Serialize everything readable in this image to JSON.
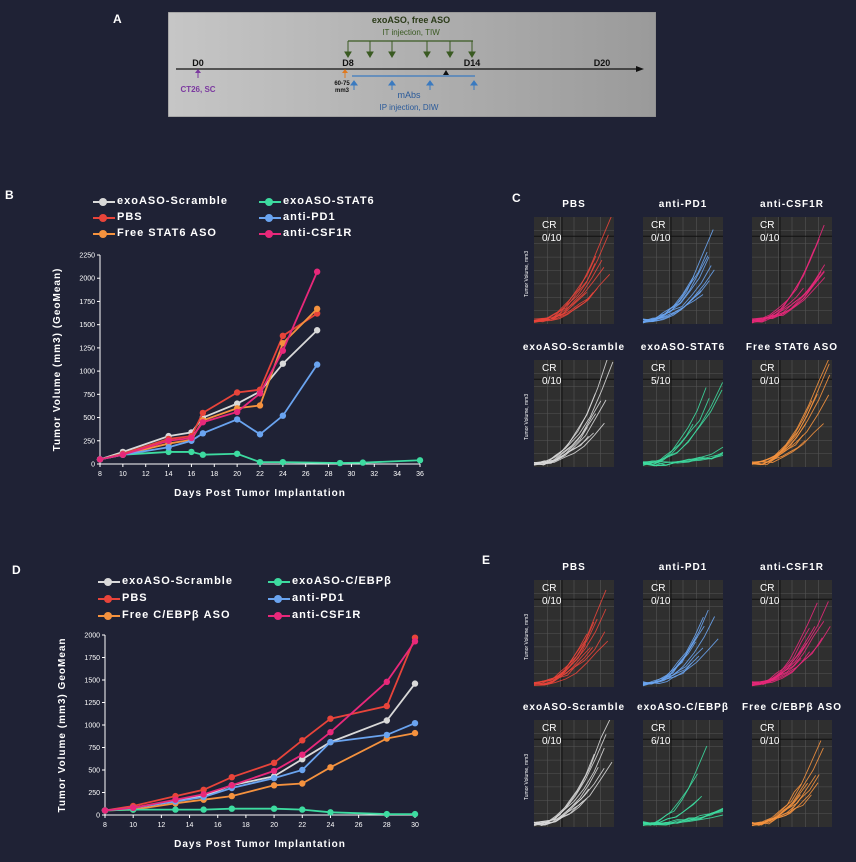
{
  "colors": {
    "scramble": "#d9d9d9",
    "pbs": "#e8443a",
    "free": "#f5923e",
    "exo": "#3ddba0",
    "pd1": "#6aa4f0",
    "csf1r": "#e8287a",
    "purple": "#7c3aa0",
    "green": "#3a5a22",
    "blue": "#3a7ac0"
  },
  "panelA": {
    "label": "A",
    "top_title": "exoASO, free ASO",
    "top_sub": "IT injection, TIW",
    "days": [
      "D0",
      "D8",
      "D14",
      "D20"
    ],
    "cell_label": "CT26, SC",
    "vol_label1": "60-75",
    "vol_label2": "mm3",
    "bottom_title": "mAbs",
    "bottom_sub": "IP injection, DIW"
  },
  "panelB": {
    "label": "B"
  },
  "panelC": {
    "label": "C"
  },
  "panelD": {
    "label": "D"
  },
  "panelE": {
    "label": "E"
  },
  "chart_data": [
    {
      "type": "line",
      "panel": "B",
      "xlabel": "Days Post Tumor Implantation",
      "ylabel": "Tumor Volume (mm3) (GeoMean)",
      "xticks": [
        8,
        10,
        12,
        14,
        16,
        18,
        20,
        22,
        24,
        26,
        28,
        30,
        32,
        34,
        36
      ],
      "yticks": [
        0,
        250,
        500,
        750,
        1000,
        1250,
        1500,
        1750,
        2000,
        2250
      ],
      "xlim": [
        8,
        36
      ],
      "ylim": [
        0,
        2250
      ],
      "legend": [
        "exoASO-Scramble",
        "PBS",
        "Free STAT6 ASO",
        "exoASO-STAT6",
        "anti-PD1",
        "anti-CSF1R"
      ],
      "series": [
        {
          "name": "exoASO-Scramble",
          "color": "#d9d9d9",
          "x": [
            8,
            10,
            14,
            16,
            17,
            20,
            22,
            24,
            27
          ],
          "y": [
            50,
            130,
            300,
            340,
            500,
            650,
            780,
            1080,
            1440
          ]
        },
        {
          "name": "PBS",
          "color": "#e8443a",
          "x": [
            8,
            10,
            14,
            16,
            17,
            20,
            22,
            24,
            27
          ],
          "y": [
            50,
            110,
            270,
            300,
            550,
            770,
            800,
            1380,
            1620
          ]
        },
        {
          "name": "Free STAT6 ASO",
          "color": "#f5923e",
          "x": [
            8,
            10,
            14,
            16,
            17,
            20,
            22,
            24,
            27
          ],
          "y": [
            50,
            100,
            220,
            260,
            470,
            600,
            630,
            1300,
            1670
          ]
        },
        {
          "name": "exoASO-STAT6",
          "color": "#3ddba0",
          "x": [
            8,
            10,
            14,
            16,
            17,
            20,
            22,
            24,
            29,
            31,
            36
          ],
          "y": [
            50,
            100,
            130,
            130,
            100,
            110,
            20,
            20,
            10,
            15,
            40
          ]
        },
        {
          "name": "anti-PD1",
          "color": "#6aa4f0",
          "x": [
            8,
            10,
            14,
            16,
            17,
            20,
            22,
            24,
            27
          ],
          "y": [
            50,
            100,
            180,
            250,
            330,
            480,
            320,
            520,
            1070
          ]
        },
        {
          "name": "anti-CSF1R",
          "color": "#e8287a",
          "x": [
            8,
            10,
            14,
            16,
            17,
            20,
            22,
            24,
            27
          ],
          "y": [
            50,
            100,
            250,
            280,
            450,
            560,
            760,
            1220,
            2070
          ]
        }
      ]
    },
    {
      "type": "line",
      "panel": "D",
      "xlabel": "Days Post Tumor Implantation",
      "ylabel": "Tumor Volume (mm3) GeoMean",
      "xticks": [
        8,
        10,
        12,
        14,
        16,
        18,
        20,
        22,
        24,
        26,
        28,
        30
      ],
      "yticks": [
        0,
        250,
        500,
        750,
        1000,
        1250,
        1500,
        1750,
        2000
      ],
      "xlim": [
        8,
        30
      ],
      "ylim": [
        0,
        2000
      ],
      "legend": [
        "exoASO-Scramble",
        "PBS",
        "Free C/EBPβ ASO",
        "exoASO-C/EBPβ",
        "anti-PD1",
        "anti-CSF1R"
      ],
      "series": [
        {
          "name": "exoASO-Scramble",
          "color": "#d9d9d9",
          "x": [
            8,
            10,
            13,
            15,
            17,
            20,
            22,
            24,
            28,
            30
          ],
          "y": [
            50,
            80,
            160,
            210,
            330,
            430,
            620,
            810,
            1050,
            1460
          ]
        },
        {
          "name": "PBS",
          "color": "#e8443a",
          "x": [
            8,
            10,
            13,
            15,
            17,
            20,
            22,
            24,
            28,
            30
          ],
          "y": [
            50,
            100,
            210,
            280,
            420,
            580,
            830,
            1070,
            1210,
            1970
          ]
        },
        {
          "name": "Free C/EBPβ ASO",
          "color": "#f5923e",
          "x": [
            8,
            10,
            13,
            15,
            17,
            20,
            22,
            24,
            28,
            30
          ],
          "y": [
            50,
            60,
            130,
            170,
            210,
            330,
            350,
            530,
            850,
            910
          ]
        },
        {
          "name": "exoASO-C/EBPβ",
          "color": "#3ddba0",
          "x": [
            8,
            10,
            13,
            15,
            17,
            20,
            22,
            24,
            28,
            30
          ],
          "y": [
            50,
            60,
            60,
            60,
            70,
            70,
            60,
            30,
            10,
            10
          ]
        },
        {
          "name": "anti-PD1",
          "color": "#6aa4f0",
          "x": [
            8,
            10,
            13,
            15,
            17,
            20,
            22,
            24,
            28,
            30
          ],
          "y": [
            50,
            80,
            150,
            200,
            300,
            410,
            500,
            810,
            890,
            1020
          ]
        },
        {
          "name": "anti-CSF1R",
          "color": "#e8287a",
          "x": [
            8,
            10,
            13,
            15,
            17,
            20,
            22,
            24,
            28,
            30
          ],
          "y": [
            50,
            80,
            170,
            230,
            330,
            490,
            670,
            920,
            1480,
            1930
          ]
        }
      ]
    },
    {
      "type": "line",
      "panel": "C",
      "ylabel": "Tumor Volume, mm3",
      "subplots": [
        {
          "title": "PBS",
          "cr": "CR",
          "cr_frac": "0/10",
          "color": "#e8443a"
        },
        {
          "title": "anti-PD1",
          "cr": "CR",
          "cr_frac": "0/10",
          "color": "#6aa4f0"
        },
        {
          "title": "anti-CSF1R",
          "cr": "CR",
          "cr_frac": "0/10",
          "color": "#e8287a"
        },
        {
          "title": "exoASO-Scramble",
          "cr": "CR",
          "cr_frac": "0/10",
          "color": "#d9d9d9"
        },
        {
          "title": "exoASO-STAT6",
          "cr": "CR",
          "cr_frac": "5/10",
          "color": "#3ddba0"
        },
        {
          "title": "Free STAT6 ASO",
          "cr": "CR",
          "cr_frac": "0/10",
          "color": "#f5923e"
        }
      ]
    },
    {
      "type": "line",
      "panel": "E",
      "ylabel": "Tumor Volume, mm3",
      "subplots": [
        {
          "title": "PBS",
          "cr": "CR",
          "cr_frac": "0/10",
          "color": "#e8443a"
        },
        {
          "title": "anti-PD1",
          "cr": "CR",
          "cr_frac": "0/10",
          "color": "#6aa4f0"
        },
        {
          "title": "anti-CSF1R",
          "cr": "CR",
          "cr_frac": "0/10",
          "color": "#e8287a"
        },
        {
          "title": "exoASO-Scramble",
          "cr": "CR",
          "cr_frac": "0/10",
          "color": "#d9d9d9"
        },
        {
          "title": "exoASO-C/EBPβ",
          "cr": "CR",
          "cr_frac": "6/10",
          "color": "#3ddba0"
        },
        {
          "title": "Free C/EBPβ ASO",
          "cr": "CR",
          "cr_frac": "0/10",
          "color": "#f5923e"
        }
      ]
    }
  ]
}
